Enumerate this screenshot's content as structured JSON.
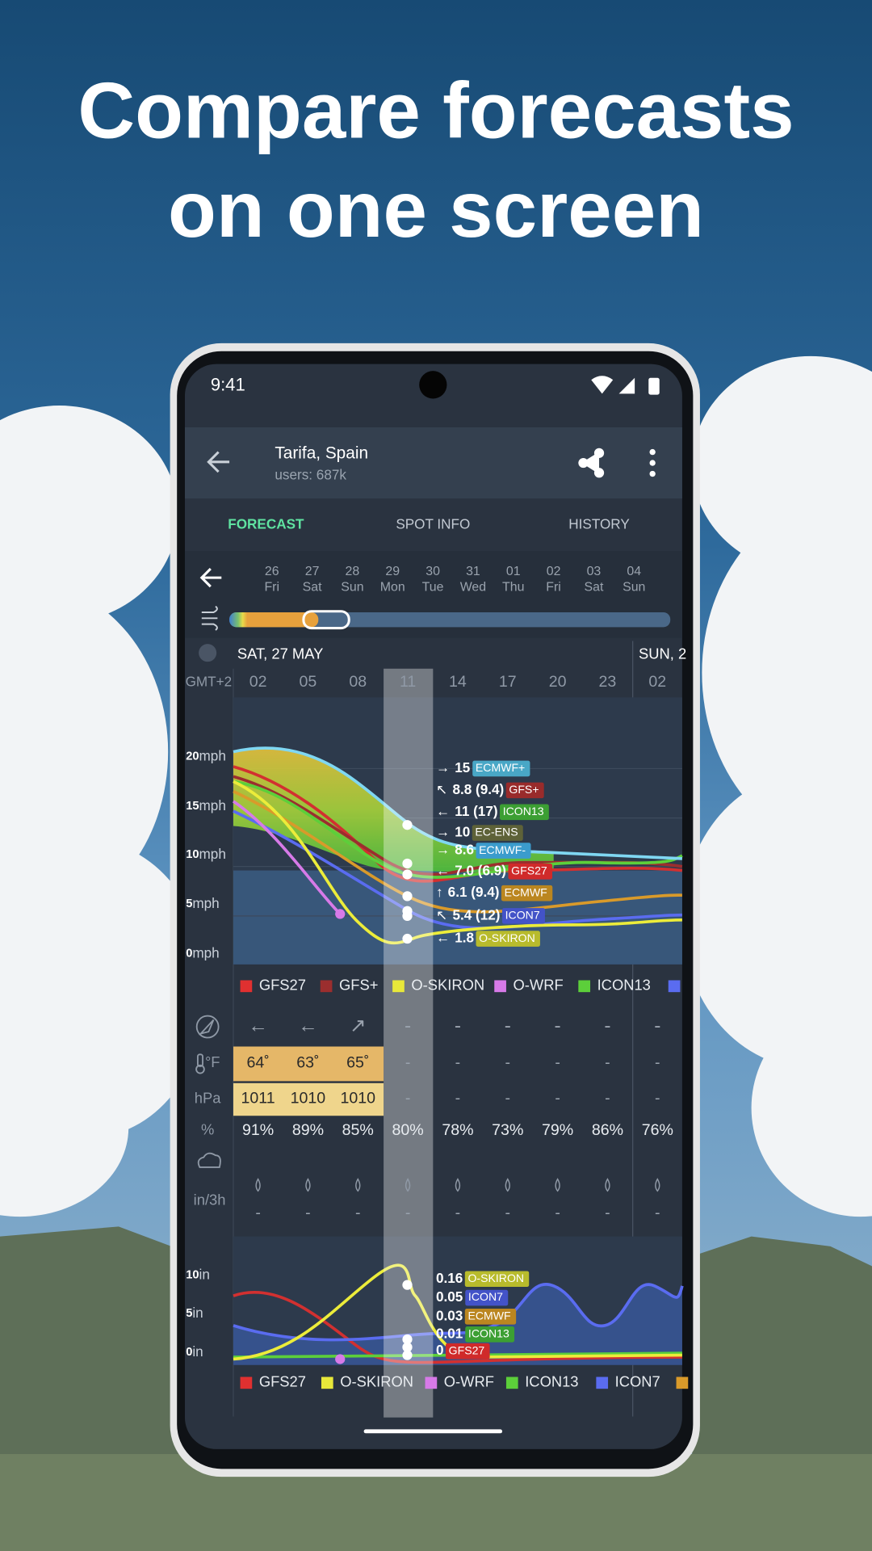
{
  "headline": {
    "lines": [
      "Compare forecasts",
      "on one screen"
    ]
  },
  "status_bar": {
    "time": "9:41"
  },
  "app_bar": {
    "title": "Tarifa, Spain",
    "subtitle": "users: 687k"
  },
  "tabs": {
    "items": [
      "FORECAST",
      "SPOT INFO",
      "HISTORY"
    ],
    "active": 0
  },
  "date_strip": {
    "dates": [
      "26",
      "27",
      "28",
      "29",
      "30",
      "31",
      "01",
      "02",
      "03",
      "04"
    ],
    "weekdays": [
      "Fri",
      "Sat",
      "Sun",
      "Mon",
      "Tue",
      "Wed",
      "Thu",
      "Fri",
      "Sat",
      "Sun"
    ]
  },
  "timeline": {
    "day_headers": [
      "SAT, 27 MAY",
      "SUN, 2"
    ],
    "timezone": "GMT+2",
    "hours": [
      "02",
      "05",
      "08",
      "11",
      "14",
      "17",
      "20",
      "23",
      "02"
    ]
  },
  "wind_chart": {
    "axis_labels": [
      {
        "value": "20",
        "unit": "mph"
      },
      {
        "value": "15",
        "unit": "mph"
      },
      {
        "value": "10",
        "unit": "mph"
      },
      {
        "value": "5",
        "unit": "mph"
      },
      {
        "value": "0",
        "unit": "mph"
      }
    ],
    "readouts": [
      {
        "arrow": "→",
        "value": "15",
        "model": "ECMWF+",
        "color": "#49a7c6"
      },
      {
        "arrow": "↖",
        "value": "8.8 (9.4)",
        "model": "GFS+",
        "color": "#992b2b"
      },
      {
        "arrow": "←",
        "value": "11 (17)",
        "model": "ICON13",
        "color": "#3c9f33"
      },
      {
        "arrow": "→",
        "value": "10",
        "model": "EC-ENS",
        "color": "#5e6238"
      },
      {
        "arrow": "→",
        "value": "8.6",
        "model": "ECMWF-",
        "color": "#3b9ccd"
      },
      {
        "arrow": "←",
        "value": "7.0 (6.9)",
        "model": "GFS27",
        "color": "#d02a2a"
      },
      {
        "arrow": "↑",
        "value": "6.1 (9.4)",
        "model": "ECMWF",
        "color": "#bb8620"
      },
      {
        "arrow": "↖",
        "value": "5.4 (12)",
        "model": "ICON7",
        "color": "#4353c8"
      },
      {
        "arrow": "←",
        "value": "1.8",
        "model": "O-SKIRON",
        "color": "#b8bb2c"
      }
    ],
    "legend": [
      {
        "name": "GFS27",
        "color": "#e03030"
      },
      {
        "name": "GFS+",
        "color": "#9b2e2e"
      },
      {
        "name": "O-SKIRON",
        "color": "#e8e83a"
      },
      {
        "name": "O-WRF",
        "color": "#d77ae8"
      },
      {
        "name": "ICON13",
        "color": "#5ccf3a"
      }
    ]
  },
  "table": {
    "direction": {
      "cells": [
        "←",
        "←",
        "↗",
        "-",
        "-",
        "-",
        "-",
        "-",
        "-"
      ]
    },
    "temperature": {
      "label": "°F",
      "cells": [
        "64˚",
        "63˚",
        "65˚",
        "-",
        "-",
        "-",
        "-",
        "-",
        "-"
      ]
    },
    "pressure": {
      "label": "hPa",
      "cells": [
        "1011",
        "1010",
        "1010",
        "-",
        "-",
        "-",
        "-",
        "-",
        "-"
      ]
    },
    "humidity": {
      "label": "%",
      "cells": [
        "91%",
        "89%",
        "85%",
        "80%",
        "78%",
        "73%",
        "79%",
        "86%",
        "76%"
      ]
    },
    "precipitation": {
      "label": "in/3h",
      "cells": [
        "-",
        "-",
        "-",
        "-",
        "-",
        "-",
        "-",
        "-",
        "-"
      ]
    }
  },
  "precip_chart": {
    "axis_labels": [
      {
        "value": "10",
        "unit": "in"
      },
      {
        "value": "5",
        "unit": "in"
      },
      {
        "value": "0",
        "unit": "in"
      }
    ],
    "readouts": [
      {
        "value": "0.16",
        "model": "O-SKIRON",
        "color": "#b8bb2c"
      },
      {
        "value": "0.05",
        "model": "ICON7",
        "color": "#4353c8"
      },
      {
        "value": "0.03",
        "model": "ECMWF",
        "color": "#bb8620"
      },
      {
        "value": "0.01",
        "model": "ICON13",
        "color": "#3c9f33"
      },
      {
        "value": "0",
        "model": "GFS27",
        "color": "#d02a2a"
      }
    ],
    "legend": [
      {
        "name": "GFS27",
        "color": "#e03030"
      },
      {
        "name": "O-SKIRON",
        "color": "#e8e83a"
      },
      {
        "name": "O-WRF",
        "color": "#d77ae8"
      },
      {
        "name": "ICON13",
        "color": "#5ccf3a"
      },
      {
        "name": "ICON7",
        "color": "#5a6cf0"
      }
    ]
  }
}
